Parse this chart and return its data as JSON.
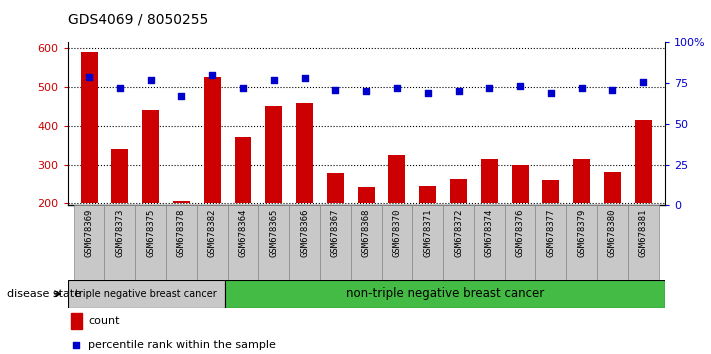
{
  "title": "GDS4069 / 8050255",
  "samples": [
    "GSM678369",
    "GSM678373",
    "GSM678375",
    "GSM678378",
    "GSM678382",
    "GSM678364",
    "GSM678365",
    "GSM678366",
    "GSM678367",
    "GSM678368",
    "GSM678370",
    "GSM678371",
    "GSM678372",
    "GSM678374",
    "GSM678376",
    "GSM678377",
    "GSM678379",
    "GSM678380",
    "GSM678381"
  ],
  "counts": [
    590,
    340,
    440,
    205,
    525,
    370,
    450,
    460,
    278,
    243,
    326,
    245,
    262,
    314,
    300,
    260,
    314,
    282,
    415
  ],
  "percentiles": [
    79,
    72,
    77,
    67,
    80,
    72,
    77,
    78,
    71,
    70,
    72,
    69,
    70,
    72,
    73,
    69,
    72,
    71,
    76
  ],
  "bar_color": "#cc0000",
  "dot_color": "#0000cc",
  "ylim_left": [
    195,
    615
  ],
  "ylim_right": [
    0,
    100
  ],
  "yticks_left": [
    200,
    300,
    400,
    500,
    600
  ],
  "yticks_right": [
    0,
    25,
    50,
    75,
    100
  ],
  "group1_label": "triple negative breast cancer",
  "group2_label": "non-triple negative breast cancer",
  "group1_count": 5,
  "group2_count": 14,
  "disease_state_label": "disease state",
  "legend_count": "count",
  "legend_percentile": "percentile rank within the sample",
  "bg_color": "#ffffff",
  "plot_bg_color": "#ffffff",
  "xtick_bg": "#c8c8c8",
  "group1_bg": "#c8c8c8",
  "group2_bg": "#44bb44"
}
